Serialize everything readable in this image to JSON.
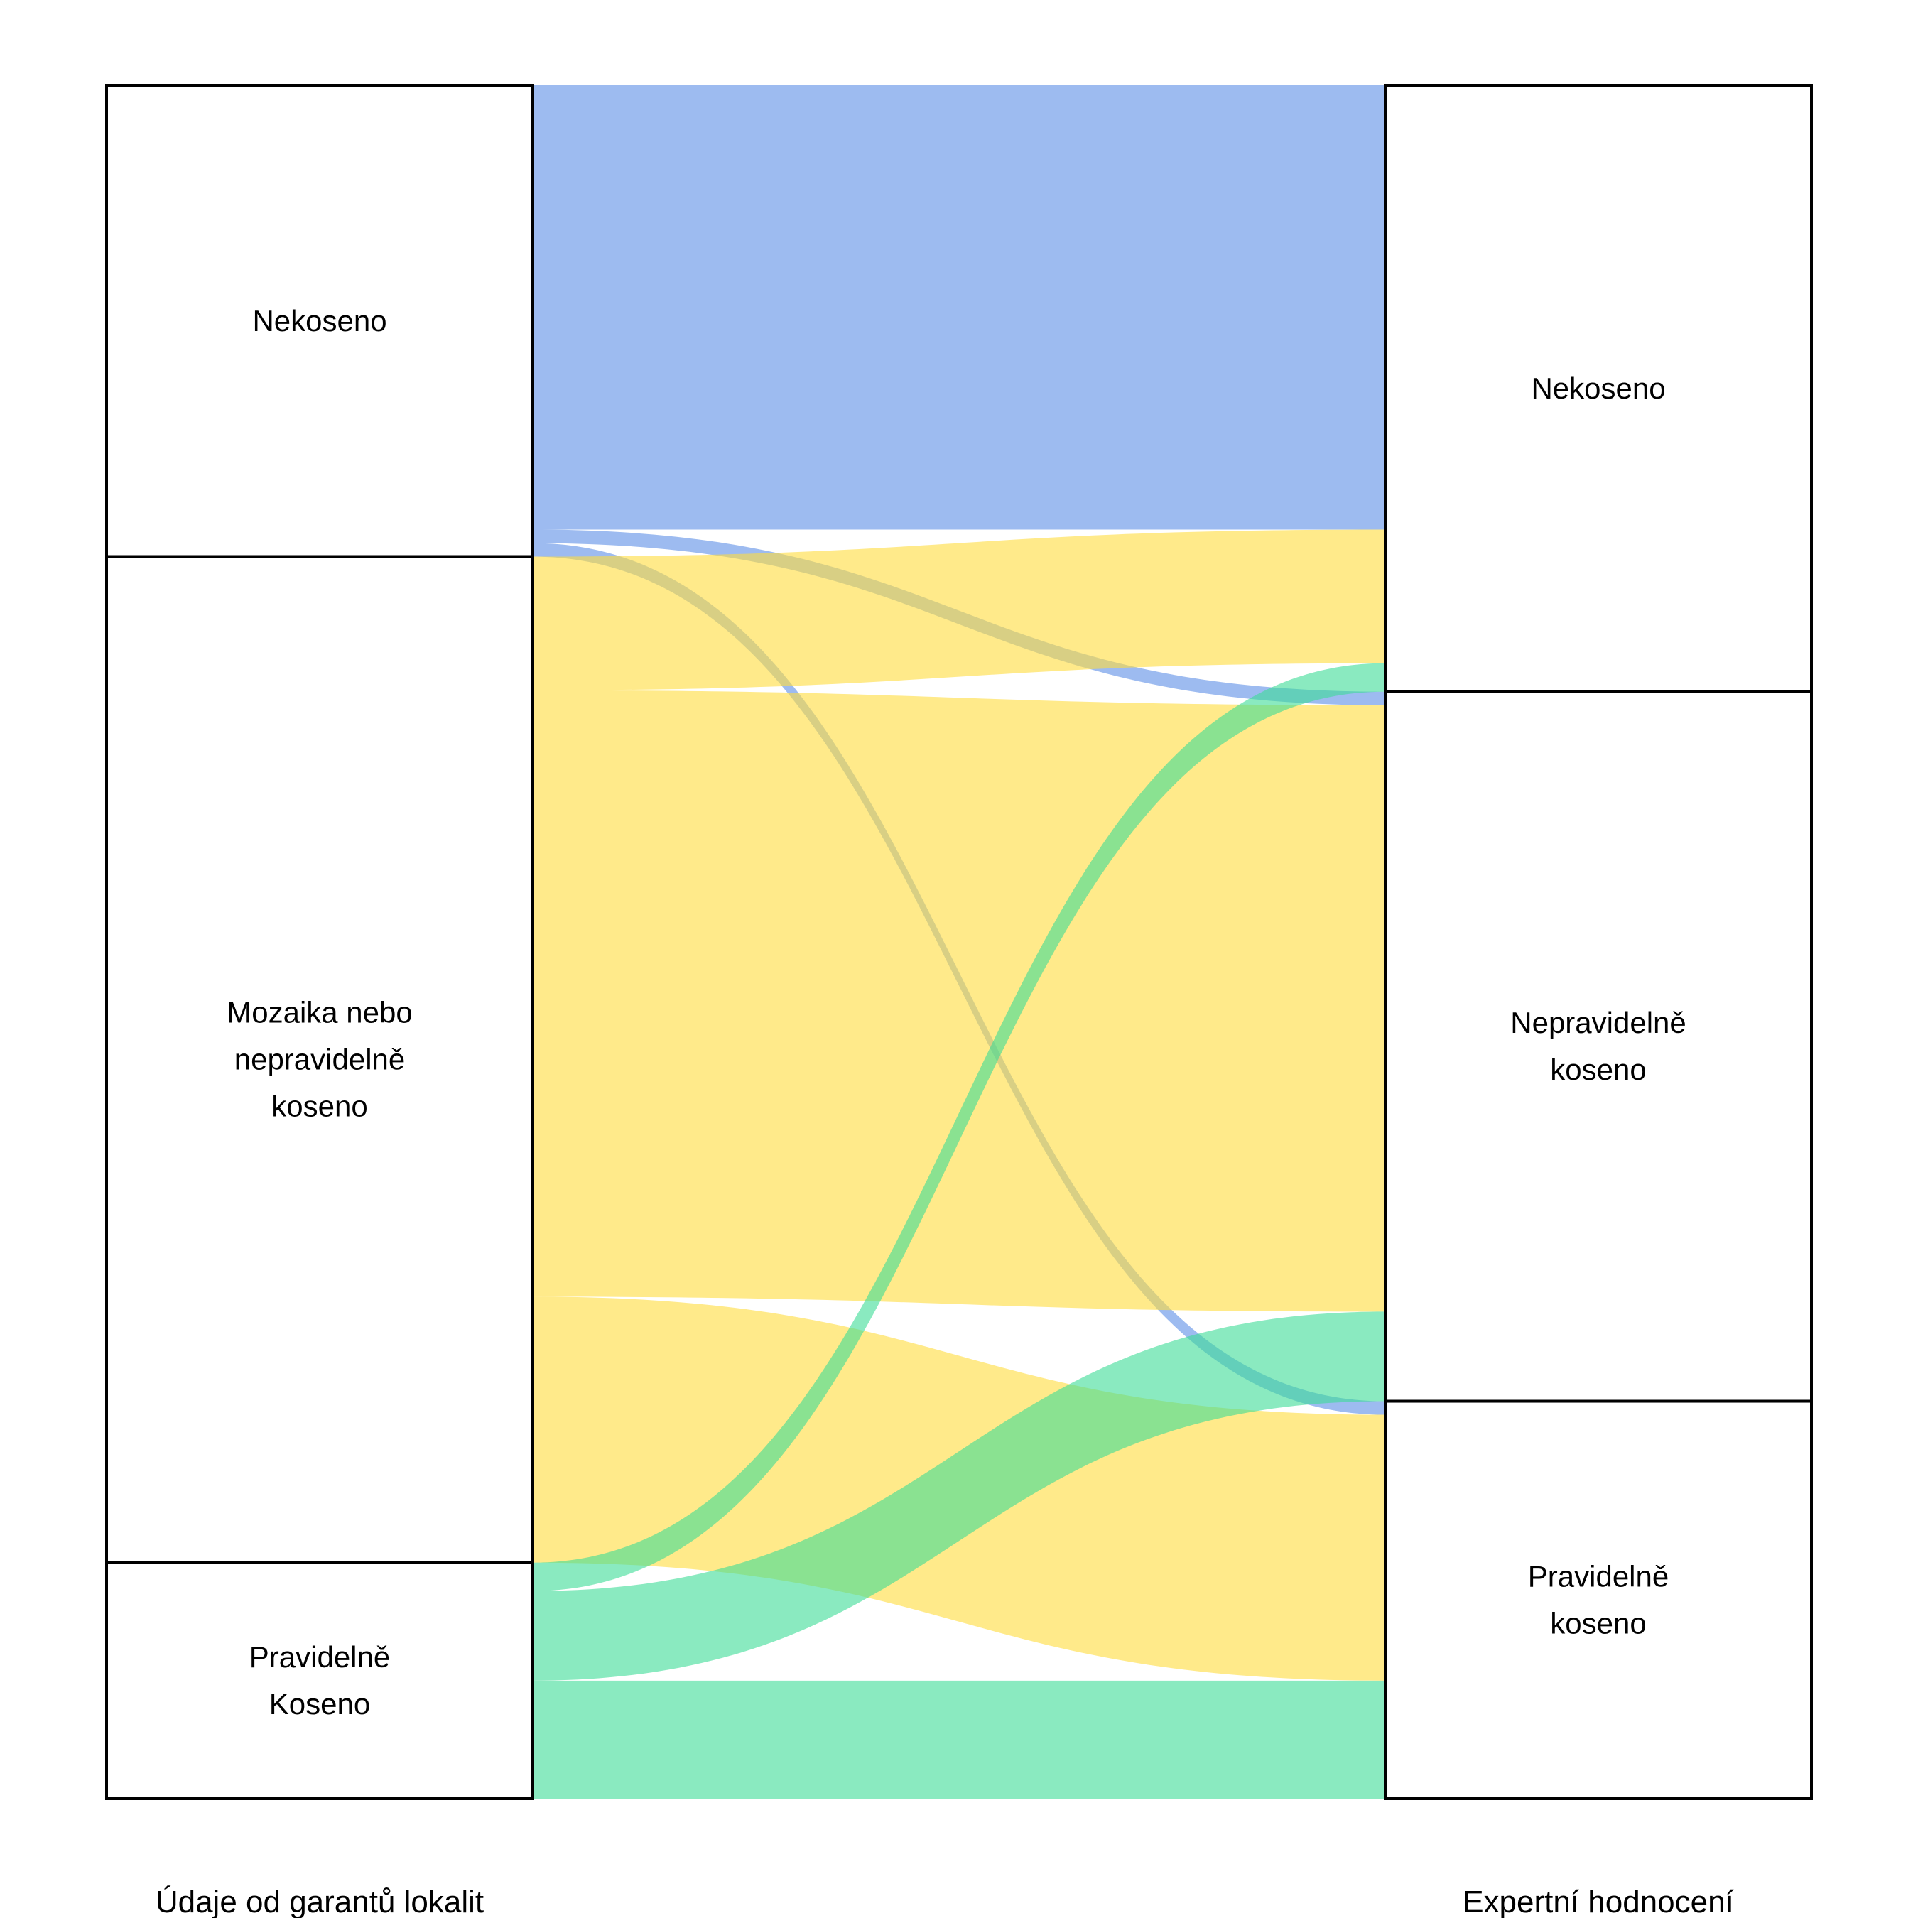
{
  "chart_data": {
    "type": "sankey",
    "axes": [
      {
        "label": "Údaje od garantů lokalit",
        "nodes": [
          {
            "id": "L_nek",
            "label_lines": [
              "Nekoseno"
            ]
          },
          {
            "id": "L_moz",
            "label_lines": [
              "Mozaika nebo",
              "nepravidelně",
              "koseno"
            ]
          },
          {
            "id": "L_pra",
            "label_lines": [
              "Pravidelně",
              "Koseno"
            ]
          }
        ]
      },
      {
        "label": "Expertní hodnocení",
        "nodes": [
          {
            "id": "R_nek",
            "label_lines": [
              "Nekoseno"
            ]
          },
          {
            "id": "R_nep",
            "label_lines": [
              "Nepravidelně",
              "koseno"
            ]
          },
          {
            "id": "R_pra",
            "label_lines": [
              "Pravidelně",
              "koseno"
            ]
          }
        ]
      }
    ],
    "flows": [
      {
        "source": "L_nek",
        "target": "R_nek",
        "value": 625,
        "color": "#5B8DE6"
      },
      {
        "source": "L_nek",
        "target": "R_nep",
        "value": 19,
        "color": "#5B8DE6"
      },
      {
        "source": "L_nek",
        "target": "R_pra",
        "value": 19,
        "color": "#5B8DE6"
      },
      {
        "source": "L_moz",
        "target": "R_nek",
        "value": 188,
        "color": "#FFDC3C"
      },
      {
        "source": "L_moz",
        "target": "R_nep",
        "value": 853,
        "color": "#FFDC3C"
      },
      {
        "source": "L_moz",
        "target": "R_pra",
        "value": 374,
        "color": "#FFDC3C"
      },
      {
        "source": "L_pra",
        "target": "R_nek",
        "value": 40,
        "color": "#3CDC96"
      },
      {
        "source": "L_pra",
        "target": "R_nep",
        "value": 126,
        "color": "#3CDC96"
      },
      {
        "source": "L_pra",
        "target": "R_pra",
        "value": 166,
        "color": "#3CDC96"
      }
    ]
  }
}
